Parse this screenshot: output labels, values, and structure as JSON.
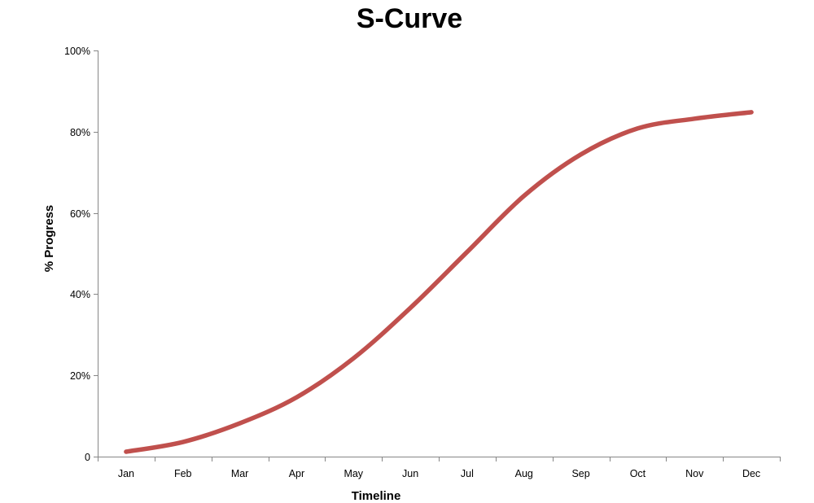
{
  "chart_data": {
    "type": "line",
    "title": "S-Curve",
    "xlabel": "Timeline",
    "ylabel": "% Progress",
    "categories": [
      "Jan",
      "Feb",
      "Mar",
      "Apr",
      "May",
      "Jun",
      "Jul",
      "Aug",
      "Sep",
      "Oct",
      "Nov",
      "Dec"
    ],
    "series": [
      {
        "values": [
          1.2,
          3.6,
          8.2,
          14.6,
          24.2,
          36.6,
          50.4,
          64.2,
          74.4,
          80.8,
          83.2,
          84.8
        ],
        "color": "#c0504d"
      }
    ],
    "ylim": [
      0,
      100
    ],
    "yticks": [
      0,
      20,
      40,
      60,
      80,
      100
    ],
    "ytick_labels": [
      "0",
      "20%",
      "40%",
      "60%",
      "80%",
      "100%"
    ],
    "grid": false,
    "legend": "none"
  }
}
